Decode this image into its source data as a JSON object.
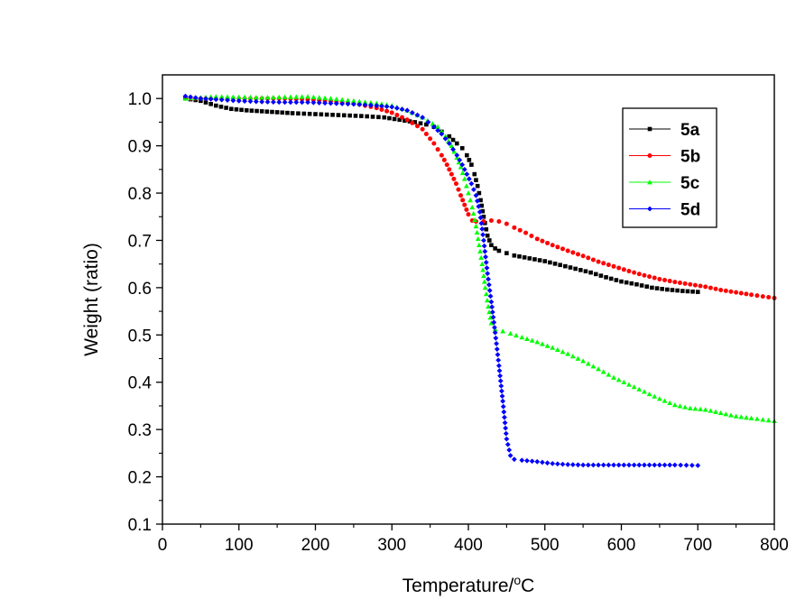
{
  "chart_data": {
    "type": "scatter",
    "title": "",
    "xlabel": "Temperature/",
    "xlabel_sup": "o",
    "xlabel_unit": "C",
    "ylabel": "Weight (ratio)",
    "xlim": [
      0,
      800
    ],
    "ylim": [
      0.1,
      1.05
    ],
    "xticks": [
      0,
      100,
      200,
      300,
      400,
      500,
      600,
      700,
      800
    ],
    "xtick_labels": [
      "0",
      "100",
      "200",
      "300",
      "400",
      "500",
      "600",
      "700",
      "800"
    ],
    "yticks": [
      0.1,
      0.2,
      0.3,
      0.4,
      0.5,
      0.6,
      0.7,
      0.8,
      0.9,
      1.0
    ],
    "ytick_labels": [
      "0.1",
      "0.2",
      "0.3",
      "0.4",
      "0.5",
      "0.6",
      "0.7",
      "0.8",
      "0.9",
      "1.0"
    ],
    "grid": false,
    "legend_position": "top-right",
    "series": [
      {
        "name": "5a",
        "color": "#000000",
        "marker": "square",
        "x": [
          30,
          50,
          70,
          90,
          110,
          130,
          150,
          170,
          200,
          230,
          260,
          290,
          310,
          330,
          345,
          355,
          365,
          375,
          385,
          392,
          398,
          404,
          408,
          412,
          416,
          420,
          425,
          430,
          435,
          440,
          450,
          460,
          480,
          500,
          520,
          540,
          560,
          580,
          600,
          620,
          640,
          660,
          680,
          700
        ],
        "y": [
          1.0,
          0.995,
          0.985,
          0.978,
          0.975,
          0.973,
          0.971,
          0.969,
          0.967,
          0.965,
          0.963,
          0.96,
          0.955,
          0.95,
          0.945,
          0.94,
          0.93,
          0.92,
          0.905,
          0.895,
          0.88,
          0.86,
          0.84,
          0.815,
          0.785,
          0.75,
          0.71,
          0.69,
          0.683,
          0.678,
          0.673,
          0.668,
          0.662,
          0.656,
          0.648,
          0.64,
          0.632,
          0.622,
          0.613,
          0.607,
          0.6,
          0.596,
          0.593,
          0.591
        ]
      },
      {
        "name": "5b",
        "color": "#ff0000",
        "marker": "circle",
        "x": [
          30,
          50,
          70,
          100,
          130,
          160,
          190,
          220,
          250,
          280,
          300,
          320,
          340,
          355,
          365,
          372,
          378,
          384,
          390,
          395,
          400,
          405,
          410,
          420,
          430,
          440,
          450,
          460,
          475,
          490,
          510,
          530,
          550,
          570,
          590,
          610,
          630,
          650,
          670,
          690,
          710,
          730,
          750,
          770,
          800
        ],
        "y": [
          1.0,
          1.0,
          1.0,
          1.0,
          1.0,
          1.0,
          0.998,
          0.995,
          0.99,
          0.98,
          0.97,
          0.955,
          0.935,
          0.905,
          0.88,
          0.86,
          0.84,
          0.82,
          0.795,
          0.775,
          0.755,
          0.742,
          0.74,
          0.74,
          0.742,
          0.74,
          0.735,
          0.727,
          0.716,
          0.703,
          0.69,
          0.678,
          0.667,
          0.655,
          0.645,
          0.635,
          0.626,
          0.618,
          0.612,
          0.607,
          0.602,
          0.595,
          0.59,
          0.585,
          0.578
        ]
      },
      {
        "name": "5c",
        "color": "#00ff00",
        "marker": "triangle",
        "x": [
          30,
          50,
          70,
          100,
          130,
          160,
          190,
          220,
          250,
          280,
          300,
          320,
          340,
          360,
          370,
          378,
          385,
          390,
          395,
          400,
          405,
          410,
          414,
          418,
          422,
          426,
          430,
          435,
          445,
          455,
          470,
          490,
          510,
          530,
          550,
          570,
          590,
          610,
          630,
          650,
          670,
          690,
          710,
          730,
          750,
          770,
          800
        ],
        "y": [
          1.0,
          1.002,
          1.004,
          1.003,
          1.002,
          1.003,
          1.004,
          1.0,
          0.995,
          0.99,
          0.985,
          0.975,
          0.96,
          0.94,
          0.92,
          0.9,
          0.875,
          0.855,
          0.83,
          0.8,
          0.77,
          0.73,
          0.69,
          0.65,
          0.6,
          0.56,
          0.525,
          0.512,
          0.508,
          0.503,
          0.495,
          0.485,
          0.473,
          0.46,
          0.445,
          0.428,
          0.41,
          0.395,
          0.38,
          0.365,
          0.352,
          0.345,
          0.342,
          0.335,
          0.328,
          0.324,
          0.318
        ]
      },
      {
        "name": "5d",
        "color": "#0000ff",
        "marker": "diamond",
        "x": [
          30,
          50,
          70,
          100,
          130,
          160,
          190,
          220,
          250,
          280,
          300,
          320,
          340,
          355,
          365,
          375,
          385,
          392,
          398,
          404,
          410,
          415,
          420,
          425,
          430,
          435,
          440,
          445,
          450,
          455,
          460,
          470,
          490,
          510,
          530,
          550,
          570,
          590,
          610,
          630,
          650,
          670,
          700
        ],
        "y": [
          1.005,
          1.0,
          0.998,
          0.995,
          0.993,
          0.992,
          0.992,
          0.99,
          0.988,
          0.985,
          0.982,
          0.975,
          0.96,
          0.94,
          0.925,
          0.905,
          0.88,
          0.86,
          0.84,
          0.82,
          0.795,
          0.76,
          0.7,
          0.63,
          0.57,
          0.505,
          0.435,
          0.36,
          0.28,
          0.245,
          0.237,
          0.235,
          0.232,
          0.228,
          0.226,
          0.225,
          0.225,
          0.225,
          0.225,
          0.225,
          0.225,
          0.225,
          0.224
        ]
      }
    ]
  }
}
